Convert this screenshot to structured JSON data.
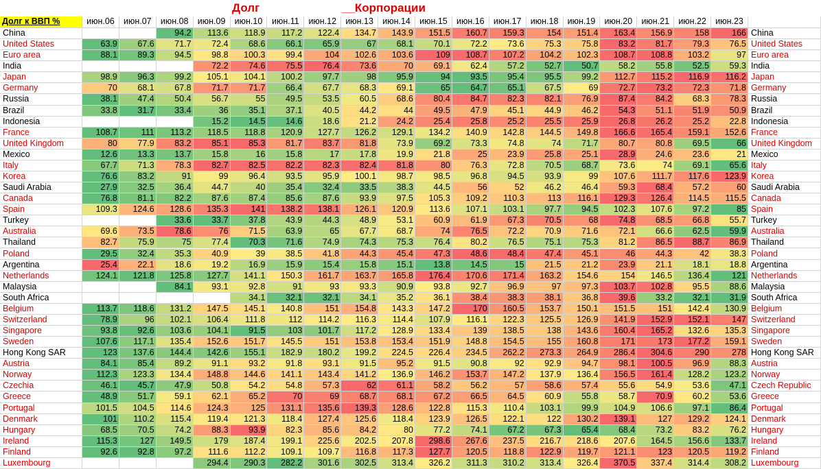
{
  "title": "Долг",
  "subtitle": "__Корпорации",
  "header_label": "Долг к ВВП %",
  "color_scale": {
    "low": "#63be7b",
    "mid": "#ffeb84",
    "high": "#f8696b"
  },
  "columns": [
    "июн.06",
    "июн.07",
    "июн.08",
    "июн.09",
    "июн.10",
    "июн.11",
    "июн.12",
    "июн.13",
    "июн.14",
    "июн.15",
    "июн.16",
    "июн.17",
    "июн.18",
    "июн.19",
    "июн.20",
    "июн.21",
    "июн.22",
    "июн.23"
  ],
  "rows": [
    {
      "name": "China",
      "name_right": "China",
      "color": "#000000",
      "values": [
        null,
        null,
        94.2,
        113.6,
        118.9,
        117.2,
        122.4,
        134.7,
        143.9,
        151.5,
        160.7,
        159.3,
        154,
        151.4,
        163.4,
        156.9,
        158,
        166
      ]
    },
    {
      "name": "United States",
      "name_right": "United States",
      "color": "#e00000",
      "values": [
        63.9,
        67.6,
        71.7,
        72.4,
        68.6,
        66.1,
        65.9,
        67,
        68.1,
        70.1,
        72.2,
        73.6,
        75.3,
        75.8,
        83.2,
        81.7,
        79.3,
        76.5
      ]
    },
    {
      "name": "Euro area",
      "name_right": "Euro area",
      "color": "#e00000",
      "values": [
        88.1,
        89.3,
        94.5,
        98.8,
        100.3,
        99.4,
        104,
        102.6,
        103.6,
        109,
        108.7,
        107.2,
        104.2,
        102.3,
        108.7,
        108.8,
        103.2,
        97
      ]
    },
    {
      "name": "India",
      "name_right": "India",
      "color": "#000000",
      "values": [
        null,
        null,
        null,
        72.2,
        74.6,
        75.5,
        76.4,
        73.6,
        70,
        69.1,
        62.4,
        57.2,
        52.7,
        50.7,
        58.2,
        55.8,
        52.5,
        59.3
      ]
    },
    {
      "name": "Japan",
      "name_right": "Japan",
      "color": "#e00000",
      "values": [
        98.9,
        96.3,
        99.2,
        105.1,
        104.1,
        100.2,
        97.7,
        98,
        95.9,
        94,
        93.5,
        95.4,
        95.5,
        99.2,
        112.7,
        115.2,
        116.9,
        116.2
      ]
    },
    {
      "name": "Germany",
      "name_right": "Germany",
      "color": "#e00000",
      "values": [
        70,
        68.1,
        67.8,
        71.7,
        71.7,
        66.4,
        67.7,
        68.3,
        69.1,
        65,
        64.7,
        65.1,
        67.5,
        69,
        72.7,
        73.2,
        72.3,
        71.8
      ]
    },
    {
      "name": "Russia",
      "name_right": "Russia",
      "color": "#000000",
      "values": [
        38.1,
        47.4,
        50.4,
        56.7,
        55,
        49.5,
        53.5,
        60.5,
        68.6,
        80.4,
        84.7,
        82.3,
        82.1,
        76.9,
        87.4,
        84.2,
        68.3,
        78.3
      ]
    },
    {
      "name": "Brazil",
      "name_right": "Brazil",
      "color": "#000000",
      "values": [
        33.8,
        31.7,
        33.4,
        36,
        35.1,
        37.1,
        40.5,
        44.2,
        44,
        49.5,
        47.9,
        45.1,
        44.9,
        46.2,
        54.3,
        51.1,
        51.9,
        50.9
      ]
    },
    {
      "name": "Indonesia",
      "name_right": "Indonesia",
      "color": "#000000",
      "values": [
        null,
        null,
        null,
        15.2,
        14.5,
        14.6,
        18.6,
        21.2,
        24.2,
        25.4,
        25.8,
        25.2,
        25.5,
        25.9,
        26.8,
        26.2,
        25.2,
        22.8
      ]
    },
    {
      "name": "France",
      "name_right": "France",
      "color": "#e00000",
      "values": [
        108.7,
        111,
        113.2,
        118.5,
        118.8,
        120.9,
        127.7,
        126.2,
        129.1,
        134.2,
        140.9,
        142.8,
        144.5,
        149.8,
        166.6,
        165.4,
        159.1,
        152.6
      ]
    },
    {
      "name": "United Kingdom",
      "name_right": "United Kingdom",
      "color": "#e00000",
      "values": [
        80,
        77.9,
        83.2,
        85.1,
        85.3,
        81.7,
        83.7,
        81.8,
        73.9,
        69.2,
        73.3,
        74.8,
        74,
        71.7,
        80.7,
        80.8,
        69.5,
        66
      ]
    },
    {
      "name": "Mexico",
      "name_right": "Mexico",
      "color": "#000000",
      "values": [
        12.6,
        13.3,
        13.7,
        15.8,
        16,
        15.8,
        17,
        17.8,
        19.9,
        21.8,
        25,
        23.9,
        25.8,
        25.1,
        28.9,
        24.6,
        23.6,
        21
      ]
    },
    {
      "name": "Italy",
      "name_right": "Italy",
      "color": "#e00000",
      "values": [
        67.7,
        71.3,
        78.3,
        82.7,
        82.5,
        82.2,
        82.3,
        82.4,
        81.8,
        80,
        76.3,
        72.8,
        70.5,
        68.7,
        73.6,
        74,
        69.1,
        65.6
      ]
    },
    {
      "name": "Korea",
      "name_right": "Korea",
      "color": "#e00000",
      "values": [
        76.6,
        83.2,
        91,
        99,
        96.4,
        93.5,
        95.9,
        100.1,
        98.7,
        98.5,
        96.8,
        94.5,
        93.9,
        99,
        107.6,
        111.7,
        117.6,
        123.9
      ]
    },
    {
      "name": "Saudi Arabia",
      "name_right": "Saudi Arabia",
      "color": "#000000",
      "values": [
        27.9,
        32.5,
        36.4,
        44.7,
        40,
        35.4,
        32.4,
        33.5,
        38.3,
        44.5,
        56,
        52,
        46.2,
        46.4,
        59.3,
        68.4,
        57.2,
        60
      ]
    },
    {
      "name": "Canada",
      "name_right": "Canada",
      "color": "#e00000",
      "values": [
        76.8,
        81.1,
        82.2,
        87.6,
        87.4,
        85.6,
        87.6,
        93.9,
        97.5,
        105.3,
        109.2,
        110.3,
        113,
        116.1,
        129.3,
        126.4,
        114.5,
        115.5
      ]
    },
    {
      "name": "Spain",
      "name_right": "Spain",
      "color": "#e00000",
      "values": [
        109.3,
        124.6,
        128.6,
        135.3,
        141,
        138.2,
        138.1,
        126.1,
        120.9,
        113.6,
        107.1,
        103.1,
        97.7,
        94.5,
        102.3,
        107.6,
        97.2,
        85
      ]
    },
    {
      "name": "Turkey",
      "name_right": "Turkey",
      "color": "#000000",
      "values": [
        null,
        null,
        33.6,
        33.7,
        37.8,
        43.9,
        44.3,
        48.9,
        53.1,
        60.9,
        61.9,
        67.3,
        70.5,
        68,
        74.8,
        68.5,
        66.8,
        55.7
      ]
    },
    {
      "name": "Australia",
      "name_right": "Australia",
      "color": "#e00000",
      "values": [
        69.6,
        73.5,
        78.6,
        76,
        71.5,
        63.9,
        65,
        67.7,
        68.7,
        74,
        76.5,
        72.2,
        70.9,
        71.6,
        72.1,
        66.6,
        62.5,
        59.9
      ]
    },
    {
      "name": "Thailand",
      "name_right": "Thailand",
      "color": "#000000",
      "values": [
        82.7,
        75.9,
        75,
        77.4,
        70.3,
        71.6,
        74.9,
        74.3,
        75.3,
        76.4,
        80.2,
        76.5,
        75.1,
        75.3,
        81.2,
        86.5,
        88.7,
        86.9
      ]
    },
    {
      "name": "Poland",
      "name_right": "Poland",
      "color": "#e00000",
      "values": [
        29.5,
        32.4,
        35.3,
        40.9,
        39,
        38.5,
        41.8,
        44.3,
        45.4,
        47.3,
        48.6,
        48.4,
        47.4,
        45.1,
        46,
        44.3,
        42,
        38.3
      ]
    },
    {
      "name": "Argentina",
      "name_right": "Argentina",
      "color": "#000000",
      "values": [
        25.4,
        22.1,
        18.6,
        19.2,
        16.9,
        15.9,
        15.4,
        15.8,
        15.1,
        13.8,
        14.5,
        15,
        21.5,
        21.2,
        23.9,
        21.1,
        18.1,
        18.8
      ]
    },
    {
      "name": "Netherlands",
      "name_right": "Netherlands",
      "color": "#e00000",
      "values": [
        124.1,
        121.8,
        125.8,
        127.7,
        141.1,
        150.3,
        161.7,
        163.7,
        165.8,
        176.4,
        170.6,
        171.4,
        163.2,
        154.6,
        154,
        146.5,
        136.4,
        121
      ]
    },
    {
      "name": "Malaysia",
      "name_right": "Malaysia",
      "color": "#000000",
      "values": [
        null,
        null,
        84.1,
        93.1,
        92.8,
        91,
        93,
        93.3,
        90.9,
        93.8,
        92.7,
        96.9,
        97,
        97.3,
        103.7,
        102.8,
        95.5,
        88.6
      ]
    },
    {
      "name": "South Africa",
      "name_right": "South Africa",
      "color": "#000000",
      "values": [
        null,
        null,
        null,
        null,
        34.1,
        32.1,
        32.1,
        34.1,
        35.2,
        36.1,
        38.4,
        38.3,
        38.1,
        36.8,
        39.6,
        33.2,
        32.1,
        31.9
      ]
    },
    {
      "name": "Belgium",
      "name_right": "Belgium",
      "color": "#e00000",
      "values": [
        113.7,
        118.6,
        131.2,
        147.5,
        145.1,
        140.8,
        151,
        154.8,
        143.3,
        147.2,
        170,
        160.5,
        153.7,
        150.1,
        151.5,
        151,
        142.4,
        130.9
      ]
    },
    {
      "name": "Switzerland",
      "name_right": "Switzerland",
      "color": "#e00000",
      "values": [
        78.9,
        96,
        102.1,
        106.4,
        111.8,
        112,
        114.2,
        116.3,
        114.4,
        107.9,
        116.1,
        122.3,
        125.5,
        126.9,
        141.9,
        152.9,
        152.1,
        147
      ]
    },
    {
      "name": "Singapore",
      "name_right": "Singapore",
      "color": "#e00000",
      "values": [
        93.8,
        92.6,
        103.6,
        104.1,
        91.5,
        103,
        101.7,
        117.2,
        128.9,
        133.4,
        139,
        138.5,
        138,
        143.6,
        160.4,
        165.2,
        132.6,
        135.3
      ]
    },
    {
      "name": "Sweden",
      "name_right": "Sweden",
      "color": "#e00000",
      "values": [
        107.6,
        117.1,
        135.4,
        152.6,
        151.7,
        145.5,
        151,
        153.8,
        153.4,
        151.9,
        148.8,
        154.5,
        155,
        160.8,
        171,
        173,
        177.2,
        159.1
      ]
    },
    {
      "name": "Hong Kong SAR",
      "name_right": "Hong Kong SAR",
      "color": "#000000",
      "values": [
        123,
        137.6,
        144.4,
        142.6,
        155.1,
        182.9,
        180.2,
        199.2,
        224.5,
        226.4,
        234.5,
        262.2,
        273.3,
        264.9,
        286.4,
        304.6,
        290,
        278
      ]
    },
    {
      "name": "Austria",
      "name_right": "Austria",
      "color": "#e00000",
      "values": [
        84.1,
        85.4,
        89.2,
        91.1,
        93.2,
        91.8,
        93.1,
        91.5,
        95.2,
        91.5,
        90.8,
        92,
        92.9,
        94.7,
        98.1,
        100.5,
        96.9,
        88.3
      ]
    },
    {
      "name": "Norway",
      "name_right": "Norway",
      "color": "#e00000",
      "values": [
        112.3,
        123.3,
        134.4,
        148.8,
        144.6,
        141.1,
        143.4,
        141.2,
        136.9,
        146.2,
        153.7,
        147.2,
        137.9,
        136.4,
        156.5,
        161.4,
        128.2,
        123.2
      ]
    },
    {
      "name": "Czechia",
      "name_right": "Czech Republic",
      "color": "#e00000",
      "values": [
        46.1,
        45.7,
        47.9,
        50.8,
        54.2,
        54.8,
        57.3,
        62,
        61.1,
        58.2,
        56.2,
        57,
        58.6,
        57.4,
        55.6,
        54.9,
        53.6,
        47.1
      ]
    },
    {
      "name": "Greece",
      "name_right": "Greece",
      "color": "#e00000",
      "values": [
        48.9,
        51.7,
        59.1,
        62.1,
        65.2,
        70,
        69,
        68.7,
        68.1,
        67.2,
        66.5,
        64.5,
        60.9,
        55.8,
        58.7,
        70.9,
        60.2,
        53.6
      ]
    },
    {
      "name": "Portugal",
      "name_right": "Portugal",
      "color": "#e00000",
      "values": [
        101.5,
        104.5,
        114.6,
        124.3,
        125,
        131.1,
        135.6,
        139.3,
        128.6,
        122.8,
        115.3,
        110.4,
        103.1,
        99.9,
        104.9,
        106.6,
        97.1,
        86.4
      ]
    },
    {
      "name": "Denmark",
      "name_right": "Denmark",
      "color": "#e00000",
      "values": [
        101,
        110.2,
        115.4,
        119.4,
        121.3,
        118.4,
        127.4,
        125.6,
        118.4,
        123.9,
        126.5,
        122.1,
        122,
        130.2,
        139.1,
        127,
        129.2,
        124.1
      ]
    },
    {
      "name": "Hungary",
      "name_right": "Hungary",
      "color": "#e00000",
      "values": [
        68.5,
        70.5,
        74.2,
        88.3,
        93.9,
        82.3,
        85.6,
        84.2,
        80,
        77.2,
        74.1,
        67.2,
        67.3,
        65.4,
        68.4,
        73.2,
        83.2,
        76.2
      ]
    },
    {
      "name": "Ireland",
      "name_right": "Ireland",
      "color": "#e00000",
      "values": [
        115.3,
        127,
        149.5,
        179,
        187.4,
        199.1,
        225.6,
        202.5,
        207.8,
        298.6,
        267.6,
        237.5,
        216.7,
        218.6,
        207.6,
        164.5,
        156.6,
        133.7
      ]
    },
    {
      "name": "Finland",
      "name_right": "Finland",
      "color": "#e00000",
      "values": [
        92.6,
        92.8,
        97.2,
        111.6,
        112.2,
        109.1,
        109.7,
        116.8,
        117.3,
        127.7,
        120.5,
        118.8,
        122.9,
        119.7,
        121.1,
        123,
        120.5,
        119.2
      ]
    },
    {
      "name": "Luxembourg",
      "name_right": "Luxembourg",
      "color": "#e00000",
      "values": [
        null,
        null,
        null,
        294.4,
        290.3,
        282.2,
        301.6,
        302.5,
        313.4,
        326.2,
        311.3,
        310.2,
        313.4,
        326.4,
        370.5,
        337.4,
        314.4,
        308.2
      ]
    }
  ]
}
